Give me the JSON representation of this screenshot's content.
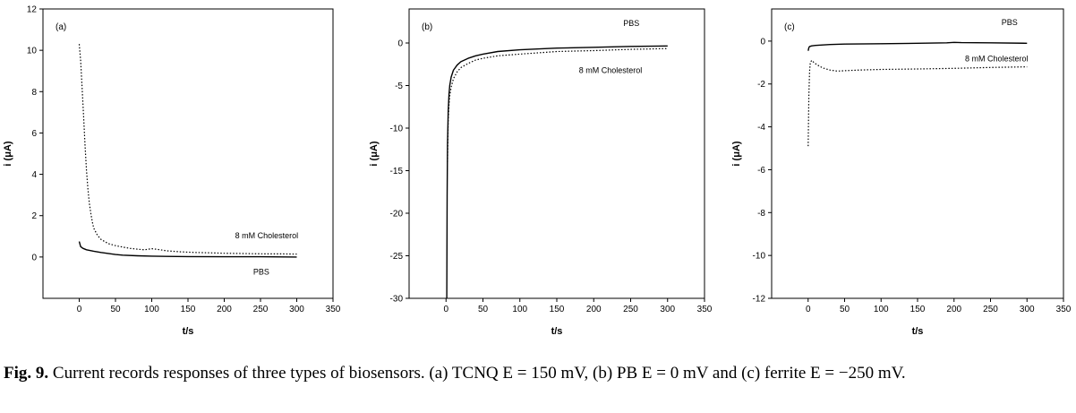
{
  "caption": {
    "label": "Fig. 9.",
    "text": " Current records responses of three types of biosensors. (a) TCNQ E = 150 mV, (b) PB E = 0 mV and (c) ferrite E = −250 mV."
  },
  "chart_data": [
    {
      "type": "line",
      "panel_label": "(a)",
      "xlabel": "t/s",
      "ylabel": "i (μA)",
      "xlim": [
        -50,
        350
      ],
      "ylim": [
        -2,
        12
      ],
      "xticks": [
        0,
        50,
        100,
        150,
        200,
        250,
        300,
        350
      ],
      "yticks": [
        0,
        2,
        4,
        6,
        8,
        10,
        12
      ],
      "series": [
        {
          "name": "8 mM Cholesterol",
          "style": "dotted",
          "x": [
            0,
            2,
            4,
            6,
            8,
            10,
            12,
            14,
            16,
            18,
            20,
            25,
            30,
            40,
            50,
            60,
            70,
            80,
            90,
            100,
            110,
            120,
            140,
            160,
            180,
            200,
            220,
            240,
            260,
            280,
            300
          ],
          "y": [
            10.3,
            9.5,
            8.2,
            6.8,
            5.4,
            4.2,
            3.3,
            2.6,
            2.1,
            1.7,
            1.4,
            1.05,
            0.85,
            0.65,
            0.55,
            0.48,
            0.42,
            0.38,
            0.35,
            0.4,
            0.36,
            0.3,
            0.25,
            0.22,
            0.2,
            0.18,
            0.17,
            0.16,
            0.15,
            0.15,
            0.14
          ]
        },
        {
          "name": "PBS",
          "style": "solid",
          "x": [
            0,
            2,
            5,
            10,
            20,
            30,
            40,
            50,
            60,
            80,
            100,
            120,
            150,
            200,
            250,
            300
          ],
          "y": [
            0.75,
            0.5,
            0.42,
            0.35,
            0.28,
            0.22,
            0.17,
            0.12,
            0.09,
            0.06,
            0.04,
            0.03,
            0.02,
            0.01,
            0.01,
            0.0
          ]
        }
      ],
      "annotations": [
        {
          "text": "8 mM Cholesterol",
          "x": 215,
          "y": 0.9
        },
        {
          "text": "PBS",
          "x": 240,
          "y": -0.85
        }
      ]
    },
    {
      "type": "line",
      "panel_label": "(b)",
      "xlabel": "t/s",
      "ylabel": "i (μA)",
      "xlim": [
        -50,
        350
      ],
      "ylim": [
        -30,
        4
      ],
      "xticks": [
        0,
        50,
        100,
        150,
        200,
        250,
        300,
        350
      ],
      "yticks": [
        -30,
        -25,
        -20,
        -15,
        -10,
        -5,
        0
      ],
      "series": [
        {
          "name": "PBS",
          "style": "solid",
          "x": [
            1,
            1.5,
            2,
            3,
            4,
            5,
            7,
            10,
            15,
            20,
            30,
            40,
            50,
            70,
            100,
            150,
            200,
            250,
            300
          ],
          "y": [
            -30,
            -18,
            -12,
            -8,
            -6,
            -5,
            -4,
            -3.2,
            -2.6,
            -2.2,
            -1.8,
            -1.5,
            -1.3,
            -1.0,
            -0.8,
            -0.6,
            -0.5,
            -0.4,
            -0.35
          ]
        },
        {
          "name": "8 mM Cholesterol",
          "style": "dotted",
          "x": [
            2,
            3,
            4,
            5,
            7,
            10,
            15,
            20,
            30,
            40,
            50,
            70,
            100,
            150,
            200,
            250,
            300
          ],
          "y": [
            -14,
            -9,
            -7.2,
            -6.2,
            -5.2,
            -4.2,
            -3.4,
            -2.9,
            -2.4,
            -2.0,
            -1.8,
            -1.5,
            -1.3,
            -1.0,
            -0.9,
            -0.75,
            -0.65
          ]
        }
      ],
      "annotations": [
        {
          "text": "PBS",
          "x": 240,
          "y": 2
        },
        {
          "text": "8 mM Cholesterol",
          "x": 180,
          "y": -3.5
        }
      ]
    },
    {
      "type": "line",
      "panel_label": "(c)",
      "xlabel": "t/s",
      "ylabel": "i (μA)",
      "xlim": [
        -50,
        350
      ],
      "ylim": [
        -12,
        1.5
      ],
      "xticks": [
        0,
        50,
        100,
        150,
        200,
        250,
        300,
        350
      ],
      "yticks": [
        -12,
        -10,
        -8,
        -6,
        -4,
        -2,
        0
      ],
      "series": [
        {
          "name": "PBS",
          "style": "solid",
          "x": [
            0,
            1,
            2,
            5,
            10,
            20,
            30,
            50,
            100,
            150,
            190,
            200,
            210,
            250,
            300
          ],
          "y": [
            -0.45,
            -0.3,
            -0.25,
            -0.22,
            -0.2,
            -0.18,
            -0.16,
            -0.14,
            -0.12,
            -0.1,
            -0.08,
            -0.06,
            -0.07,
            -0.08,
            -0.1
          ]
        },
        {
          "name": "8 mM Cholesterol",
          "style": "dotted",
          "x": [
            0,
            1,
            2,
            3,
            5,
            8,
            12,
            20,
            30,
            40,
            50,
            70,
            100,
            150,
            200,
            250,
            300
          ],
          "y": [
            -4.9,
            -2.5,
            -1.4,
            -1.0,
            -0.9,
            -1.0,
            -1.1,
            -1.25,
            -1.35,
            -1.4,
            -1.38,
            -1.35,
            -1.32,
            -1.3,
            -1.27,
            -1.23,
            -1.2
          ]
        }
      ],
      "annotations": [
        {
          "text": "PBS",
          "x": 265,
          "y": 0.75
        },
        {
          "text": "8 mM Cholesterol",
          "x": 215,
          "y": -0.95
        }
      ]
    }
  ]
}
